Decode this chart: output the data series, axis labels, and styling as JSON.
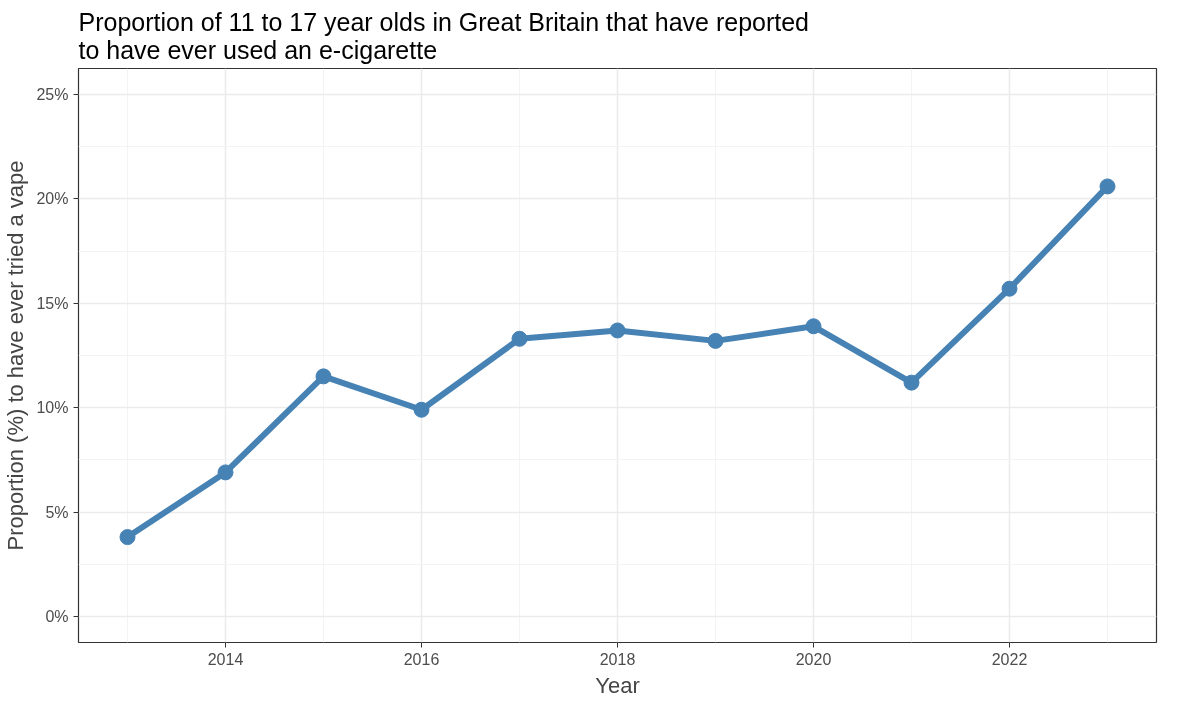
{
  "chart_data": {
    "type": "line",
    "title": "Proportion of 11 to 17 year olds in Great Britain that have reported\nto have ever used an e-cigarette",
    "xlabel": "Year",
    "ylabel": "Proportion (%) to have ever tried a vape",
    "x": [
      2013,
      2014,
      2015,
      2016,
      2017,
      2018,
      2019,
      2020,
      2021,
      2022,
      2023
    ],
    "series": [
      {
        "color": "#4682b4",
        "values": [
          3.8,
          6.9,
          11.5,
          9.9,
          13.3,
          13.7,
          13.2,
          13.9,
          11.2,
          15.7,
          20.6
        ]
      }
    ],
    "xlim": [
      2012.5,
      2023.5
    ],
    "ylim": [
      -1.25,
      26.25
    ],
    "xticks": [
      {
        "value": 2013,
        "label": null
      },
      2014,
      {
        "value": 2015,
        "label": null
      },
      2016,
      {
        "value": 2017,
        "label": null
      },
      2018,
      {
        "value": 2019,
        "label": null
      },
      2020,
      {
        "value": 2021,
        "label": null
      },
      2022,
      {
        "value": 2023,
        "label": null
      }
    ],
    "yticks": [
      {
        "value": 0,
        "label": "0%"
      },
      {
        "value": 2.5,
        "label": null
      },
      {
        "value": 5,
        "label": "5%"
      },
      {
        "value": 7.5,
        "label": null
      },
      {
        "value": 10,
        "label": "10%"
      },
      {
        "value": 12.5,
        "label": null
      },
      {
        "value": 15,
        "label": "15%"
      },
      {
        "value": 17.5,
        "label": null
      },
      {
        "value": 20,
        "label": "20%"
      },
      {
        "value": 22.5,
        "label": null
      },
      {
        "value": 25,
        "label": "25%"
      }
    ],
    "grid": true,
    "marker": "circle",
    "line_style": "solid"
  }
}
